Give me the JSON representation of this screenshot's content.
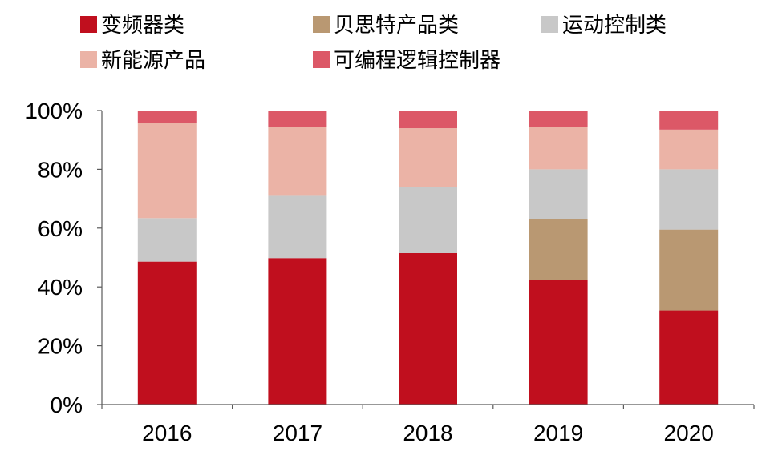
{
  "colors": {
    "变频器类": "#C00F1E",
    "贝思特产品类": "#B99872",
    "运动控制类": "#C8C8C8",
    "新能源产品": "#EBB3A6",
    "可编程逻辑控制器": "#DC5867",
    "axis": "#5A5A5A"
  },
  "chart_data": {
    "type": "bar",
    "stacked": true,
    "categories": [
      "2016",
      "2017",
      "2018",
      "2019",
      "2020"
    ],
    "ylim": [
      0,
      100
    ],
    "yticks": [
      "0%",
      "20%",
      "40%",
      "60%",
      "80%",
      "100%"
    ],
    "legend": [
      "变频器类",
      "贝思特产品类",
      "运动控制类",
      "新能源产品",
      "可编程逻辑控制器"
    ],
    "series": [
      {
        "name": "变频器类",
        "values": [
          48.6,
          49.8,
          51.5,
          42.5,
          32.0
        ]
      },
      {
        "name": "贝思特产品类",
        "values": [
          0,
          0,
          0,
          20.5,
          27.5
        ]
      },
      {
        "name": "运动控制类",
        "values": [
          14.8,
          21.2,
          22.5,
          17.0,
          20.5
        ]
      },
      {
        "name": "新能源产品",
        "values": [
          32.3,
          23.5,
          20.0,
          14.5,
          13.5
        ]
      },
      {
        "name": "可编程逻辑控制器",
        "values": [
          4.3,
          5.5,
          6.0,
          5.5,
          6.5
        ]
      }
    ]
  }
}
